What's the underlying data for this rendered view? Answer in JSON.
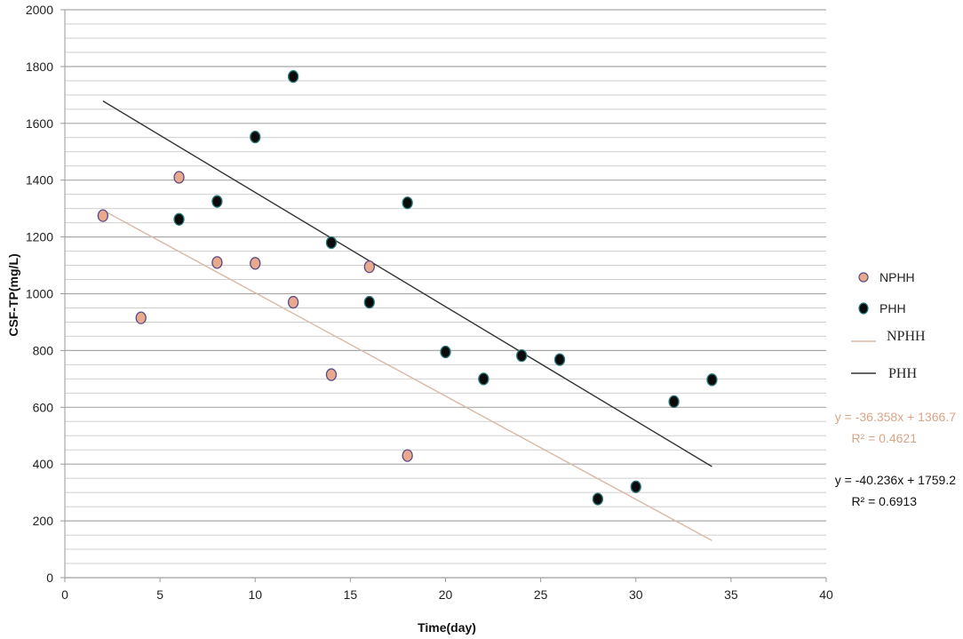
{
  "chart_data": {
    "type": "scatter",
    "xlabel": "Time(day)",
    "ylabel": "CSF-TP(mg/L)",
    "xlim": [
      0,
      40
    ],
    "ylim": [
      0,
      2000
    ],
    "x_ticks": [
      0,
      5,
      10,
      15,
      20,
      25,
      30,
      35,
      40
    ],
    "y_ticks": [
      0,
      200,
      400,
      600,
      800,
      1000,
      1200,
      1400,
      1600,
      1800,
      2000
    ],
    "grid": true,
    "legend_position": "right",
    "series": [
      {
        "name": "NPHH",
        "color": "#e8a98c",
        "edge_color": "#5b4a8a",
        "points": [
          [
            2,
            1275
          ],
          [
            4,
            915
          ],
          [
            6,
            1410
          ],
          [
            8,
            1110
          ],
          [
            10,
            1107
          ],
          [
            12,
            970
          ],
          [
            14,
            715
          ],
          [
            16,
            1095
          ],
          [
            18,
            430
          ]
        ],
        "trendline": {
          "name": "NPHH",
          "color": "#d9b8a4",
          "slope": -36.358,
          "intercept": 1366.7,
          "x_range": [
            2,
            34
          ],
          "equation": "y = -36.358x + 1366.7",
          "r_squared": "R² = 0.4621"
        }
      },
      {
        "name": "PHH",
        "color": "#0b0b0b",
        "edge_color": "#2a7a7a",
        "points": [
          [
            6,
            1262
          ],
          [
            8,
            1325
          ],
          [
            10,
            1552
          ],
          [
            12,
            1765
          ],
          [
            14,
            1180
          ],
          [
            16,
            970
          ],
          [
            18,
            1320
          ],
          [
            20,
            795
          ],
          [
            22,
            700
          ],
          [
            24,
            782
          ],
          [
            26,
            768
          ],
          [
            28,
            277
          ],
          [
            30,
            320
          ],
          [
            32,
            620
          ],
          [
            34,
            697
          ]
        ],
        "trendline": {
          "name": "PHH",
          "color": "#333333",
          "slope": -40.236,
          "intercept": 1759.2,
          "x_range": [
            2,
            34
          ],
          "equation": "y = -40.236x + 1759.2",
          "r_squared": "R² = 0.6913"
        }
      }
    ]
  }
}
